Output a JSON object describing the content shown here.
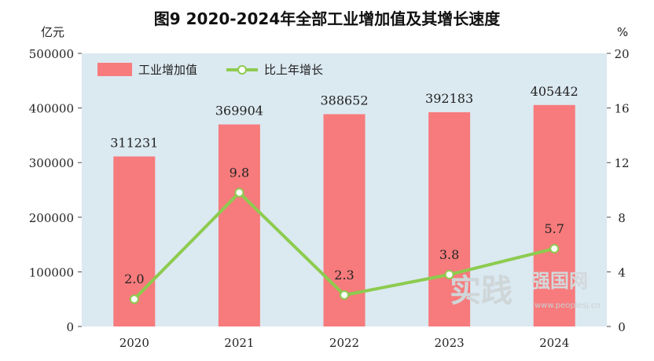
{
  "chart_data": {
    "type": "bar",
    "title": "图9    2020-2024年全部工业增加值及其增长速度",
    "left_unit": "亿元",
    "right_unit": "%",
    "categories": [
      "2020",
      "2021",
      "2022",
      "2023",
      "2024"
    ],
    "series": [
      {
        "name": "工业增加值",
        "type": "bar",
        "axis": "left",
        "values": [
          311231,
          369904,
          388652,
          392183,
          405442
        ],
        "labels": [
          "311231",
          "369904",
          "388652",
          "392183",
          "405442"
        ]
      },
      {
        "name": "比上年增长",
        "type": "line",
        "axis": "right",
        "values": [
          2.0,
          9.8,
          2.3,
          3.8,
          5.7
        ],
        "labels": [
          "2.0",
          "9.8",
          "2.3",
          "3.8",
          "5.7"
        ]
      }
    ],
    "left_axis": {
      "range": [
        0,
        500000
      ],
      "ticks": [
        "0",
        "100000",
        "200000",
        "300000",
        "400000",
        "500000"
      ]
    },
    "right_axis": {
      "range": [
        0,
        20
      ],
      "ticks": [
        "0",
        "4",
        "8",
        "12",
        "16",
        "20"
      ]
    },
    "legend_position": "top-left",
    "grid": false,
    "colors": {
      "plot_bg": "#dbe9f1",
      "bar": "#f77b7c",
      "line": "#8dcb4f",
      "marker_fill": "#ffffff"
    }
  },
  "watermark": {
    "main": "实践",
    "sub": "强国网",
    "url": "www.peoplesj.cn"
  }
}
